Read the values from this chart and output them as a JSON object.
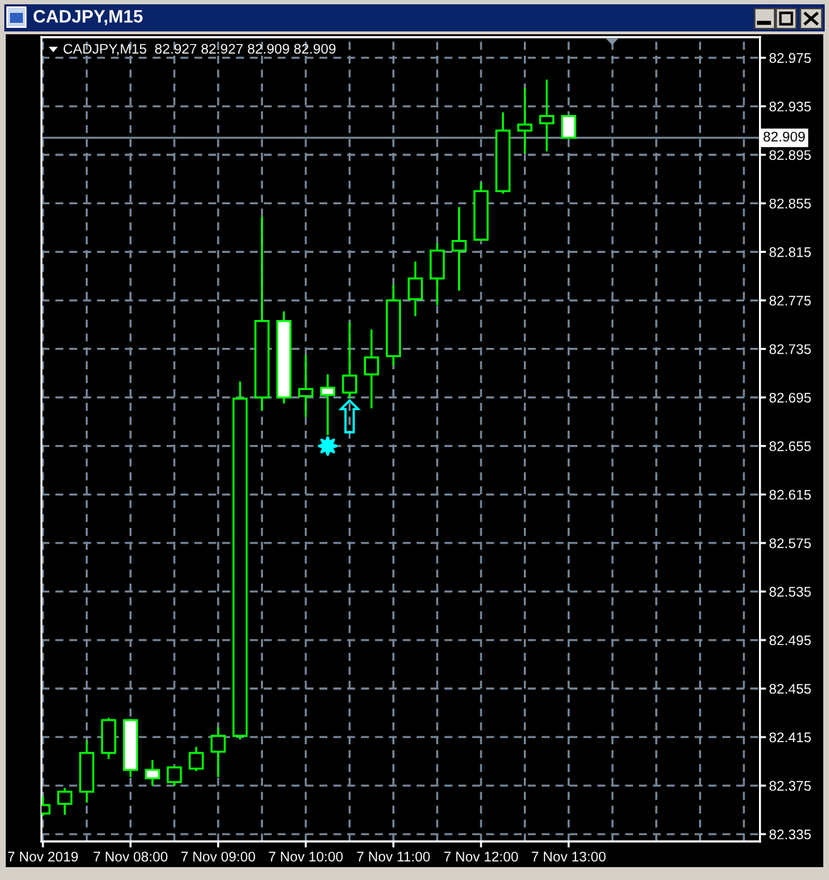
{
  "chart_data": {
    "type": "candlestick",
    "title": "CADJPY,M15",
    "subtitle": "CADJPY,M15  82.927 82.927 82.909 82.909",
    "series": [
      {
        "color": "#00ff00",
        "x": [
          "2019-11-07T07:00",
          "2019-11-07T07:15",
          "2019-11-07T07:30",
          "2019-11-07T07:45",
          "2019-11-07T08:00",
          "2019-11-07T08:15",
          "2019-11-07T08:30",
          "2019-11-07T08:45",
          "2019-11-07T09:00",
          "2019-11-07T09:15",
          "2019-11-07T09:30",
          "2019-11-07T09:45",
          "2019-11-07T10:00",
          "2019-11-07T10:15",
          "2019-11-07T10:30",
          "2019-11-07T10:45",
          "2019-11-07T11:00",
          "2019-11-07T11:15",
          "2019-11-07T11:30",
          "2019-11-07T11:45",
          "2019-11-07T12:00",
          "2019-11-07T12:15",
          "2019-11-07T12:30",
          "2019-11-07T12:45",
          "2019-11-07T13:00"
        ],
        "ohlc": [
          [
            82.352,
            82.366,
            82.35,
            82.359
          ],
          [
            82.36,
            82.373,
            82.351,
            82.37
          ],
          [
            82.37,
            82.412,
            82.361,
            82.402
          ],
          [
            82.402,
            82.431,
            82.397,
            82.429
          ],
          [
            82.429,
            82.43,
            82.382,
            82.388
          ],
          [
            82.388,
            82.396,
            82.375,
            82.381
          ],
          [
            82.378,
            82.39,
            82.375,
            82.39
          ],
          [
            82.389,
            82.407,
            82.387,
            82.402
          ],
          [
            82.403,
            82.423,
            82.382,
            82.416
          ],
          [
            82.416,
            82.708,
            82.413,
            82.694
          ],
          [
            82.695,
            82.844,
            82.684,
            82.758
          ],
          [
            82.758,
            82.766,
            82.69,
            82.695
          ],
          [
            82.696,
            82.73,
            82.679,
            82.702
          ],
          [
            82.703,
            82.714,
            82.664,
            82.697
          ],
          [
            82.699,
            82.757,
            82.694,
            82.713
          ],
          [
            82.714,
            82.751,
            82.686,
            82.728
          ],
          [
            82.729,
            82.788,
            82.721,
            82.775
          ],
          [
            82.776,
            82.807,
            82.762,
            82.793
          ],
          [
            82.793,
            82.822,
            82.771,
            82.816
          ],
          [
            82.816,
            82.852,
            82.783,
            82.824
          ],
          [
            82.825,
            82.872,
            82.825,
            82.865
          ],
          [
            82.865,
            82.93,
            82.863,
            82.915
          ],
          [
            82.915,
            82.95,
            82.896,
            82.92
          ],
          [
            82.921,
            82.957,
            82.898,
            82.927
          ],
          [
            82.927,
            82.927,
            82.909,
            82.909
          ]
        ],
        "colors": [
          "#000000",
          "#000000",
          "#000000",
          "#000000",
          "#ffffff",
          "#ffffff",
          "#000000",
          "#000000",
          "#000000",
          "#000000",
          "#000000",
          "#ffffff",
          "#000000",
          "#ffffff",
          "#000000",
          "#000000",
          "#000000",
          "#000000",
          "#000000",
          "#000000",
          "#000000",
          "#000000",
          "#000000",
          "#000000",
          "#ffffff"
        ]
      },
      {
        "type": "scatter",
        "marker": "star",
        "color": "#00ffff",
        "x": [
          "2019-11-07T10:15"
        ],
        "values": [
          82.655
        ]
      }
    ],
    "annotations": [
      {
        "text": "⇧",
        "x": "2019-11-07T10:30",
        "y": 82.694
      }
    ],
    "xlim": [
      "2019-11-07T06:59",
      "2019-11-07T15:11"
    ],
    "xticks": [
      {
        "value": "2019-11-07T07:00",
        "label": "7 Nov 2019"
      },
      {
        "value": "2019-11-07T07:30",
        "label": null
      },
      {
        "value": "2019-11-07T08:00",
        "label": "7 Nov 08:00"
      },
      {
        "value": "2019-11-07T08:30",
        "label": null
      },
      {
        "value": "2019-11-07T09:00",
        "label": "7 Nov 09:00"
      },
      {
        "value": "2019-11-07T09:30",
        "label": null
      },
      {
        "value": "2019-11-07T10:00",
        "label": "7 Nov 10:00"
      },
      {
        "value": "2019-11-07T10:30",
        "label": null
      },
      {
        "value": "2019-11-07T11:00",
        "label": "7 Nov 11:00"
      },
      {
        "value": "2019-11-07T11:30",
        "label": null
      },
      {
        "value": "2019-11-07T12:00",
        "label": "7 Nov 12:00"
      },
      {
        "value": "2019-11-07T12:30",
        "label": null
      },
      {
        "value": "2019-11-07T13:00",
        "label": "7 Nov 13:00"
      },
      {
        "value": "2019-11-07T13:30",
        "label": null
      },
      {
        "value": "2019-11-07T14:00",
        "label": null
      },
      {
        "value": "2019-11-07T14:30",
        "label": null
      },
      {
        "value": "2019-11-07T15:00",
        "label": null
      }
    ],
    "ylim": [
      82.329,
      82.992
    ],
    "yticks": [
      82.335,
      82.375,
      82.415,
      82.455,
      82.495,
      82.535,
      82.575,
      82.615,
      82.655,
      82.695,
      82.735,
      82.775,
      82.815,
      82.855,
      82.895,
      82.935,
      82.975
    ],
    "ref_lines": [
      {
        "axis": "y",
        "value": 82.909,
        "label": "82.909",
        "color": "#778899",
        "line_style": "solid"
      }
    ],
    "grid": true
  }
}
